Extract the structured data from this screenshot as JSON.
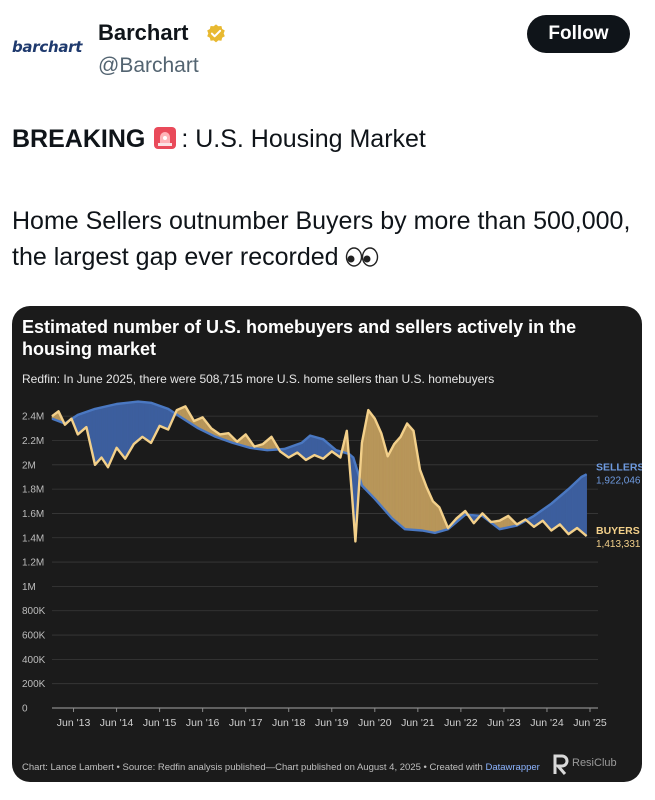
{
  "post": {
    "author_logo_text": "barchart",
    "display_name": "Barchart",
    "handle": "@Barchart",
    "follow_label": "Follow",
    "verified_color": "#e8b931",
    "text_line1_bold": "BREAKING",
    "text_line1_rest": ": U.S. Housing Market",
    "text_line2": "Home Sellers outnumber Buyers by more than 500,000, the largest gap ever recorded",
    "icons": [
      "verified-badge-icon",
      "siren-icon",
      "eyes-icon"
    ]
  },
  "chart_card": {
    "footer_text": "Chart: Lance Lambert • Source: Redfin analysis published—Chart published on August 4, 2025 • Created with ",
    "footer_link": "Datawrapper",
    "brand_text": "ResiClub"
  },
  "chart_data": {
    "type": "area",
    "title": "Estimated number of U.S. homebuyers and sellers actively in the housing market",
    "subtitle": "Redfin: In June 2025, there were 508,715 more U.S. home sellers than U.S. homebuyers",
    "x_tick_labels": [
      "Jun '13",
      "Jun '14",
      "Jun '15",
      "Jun '16",
      "Jun '17",
      "Jun '18",
      "Jun '19",
      "Jun '20",
      "Jun '21",
      "Jun '22",
      "Jun '23",
      "Jun '24",
      "Jun '25"
    ],
    "y_ticks": [
      0,
      200000,
      400000,
      600000,
      800000,
      1000000,
      1200000,
      1400000,
      1600000,
      1800000,
      2000000,
      2200000,
      2400000
    ],
    "y_tick_labels": [
      "0",
      "200K",
      "400K",
      "600K",
      "800K",
      "1M",
      "1.2M",
      "1.4M",
      "1.6M",
      "1.8M",
      "2M",
      "2.2M",
      "2.4M"
    ],
    "xlim": [
      2013.0,
      2025.5
    ],
    "ylim": [
      0,
      2500000
    ],
    "grid": true,
    "colors": {
      "sellers": "#4a78c2",
      "buyers": "#f3d08a",
      "sellers_fill": "#3d5f9e",
      "buyers_fill": "#b8965a",
      "background": "#1b1b1b"
    },
    "series": [
      {
        "name": "SELLERS",
        "end_label": "1,922,046",
        "x": [
          2013.0,
          2013.3,
          2013.6,
          2014.0,
          2014.5,
          2015.0,
          2015.3,
          2015.7,
          2016.0,
          2016.4,
          2016.8,
          2017.2,
          2017.6,
          2018.0,
          2018.4,
          2018.8,
          2019.0,
          2019.3,
          2019.6,
          2019.9,
          2020.0,
          2020.2,
          2020.5,
          2020.9,
          2021.2,
          2021.6,
          2021.9,
          2022.2,
          2022.6,
          2023.0,
          2023.4,
          2023.8,
          2024.2,
          2024.6,
          2025.0,
          2025.3,
          2025.42
        ],
        "y": [
          2380000,
          2340000,
          2410000,
          2460000,
          2500000,
          2520000,
          2510000,
          2460000,
          2390000,
          2300000,
          2230000,
          2180000,
          2140000,
          2120000,
          2130000,
          2180000,
          2240000,
          2210000,
          2120000,
          2090000,
          2060000,
          1830000,
          1720000,
          1560000,
          1470000,
          1460000,
          1440000,
          1470000,
          1590000,
          1580000,
          1470000,
          1500000,
          1580000,
          1680000,
          1800000,
          1900000,
          1922046
        ]
      },
      {
        "name": "BUYERS",
        "end_label": "1,413,331",
        "x": [
          2013.0,
          2013.15,
          2013.3,
          2013.45,
          2013.6,
          2013.8,
          2014.0,
          2014.15,
          2014.3,
          2014.5,
          2014.7,
          2014.9,
          2015.1,
          2015.3,
          2015.5,
          2015.7,
          2015.9,
          2016.1,
          2016.3,
          2016.5,
          2016.7,
          2016.9,
          2017.1,
          2017.3,
          2017.5,
          2017.7,
          2017.9,
          2018.1,
          2018.3,
          2018.5,
          2018.7,
          2018.9,
          2019.1,
          2019.3,
          2019.5,
          2019.7,
          2019.85,
          2019.97,
          2020.05,
          2020.2,
          2020.35,
          2020.5,
          2020.65,
          2020.8,
          2020.95,
          2021.1,
          2021.25,
          2021.4,
          2021.55,
          2021.7,
          2021.85,
          2022.0,
          2022.2,
          2022.4,
          2022.6,
          2022.8,
          2023.0,
          2023.2,
          2023.4,
          2023.6,
          2023.8,
          2024.0,
          2024.2,
          2024.4,
          2024.6,
          2024.8,
          2025.0,
          2025.2,
          2025.42
        ],
        "y": [
          2400000,
          2440000,
          2330000,
          2380000,
          2250000,
          2310000,
          2000000,
          2060000,
          1980000,
          2140000,
          2050000,
          2170000,
          2230000,
          2180000,
          2320000,
          2290000,
          2450000,
          2480000,
          2360000,
          2390000,
          2300000,
          2250000,
          2260000,
          2190000,
          2250000,
          2150000,
          2170000,
          2230000,
          2110000,
          2060000,
          2100000,
          2040000,
          2080000,
          2050000,
          2110000,
          2060000,
          2280000,
          1750000,
          1370000,
          2180000,
          2450000,
          2380000,
          2260000,
          2070000,
          2170000,
          2230000,
          2340000,
          2280000,
          1960000,
          1820000,
          1700000,
          1650000,
          1480000,
          1560000,
          1620000,
          1520000,
          1600000,
          1530000,
          1540000,
          1580000,
          1510000,
          1550000,
          1490000,
          1540000,
          1460000,
          1510000,
          1430000,
          1480000,
          1413331
        ]
      }
    ]
  }
}
